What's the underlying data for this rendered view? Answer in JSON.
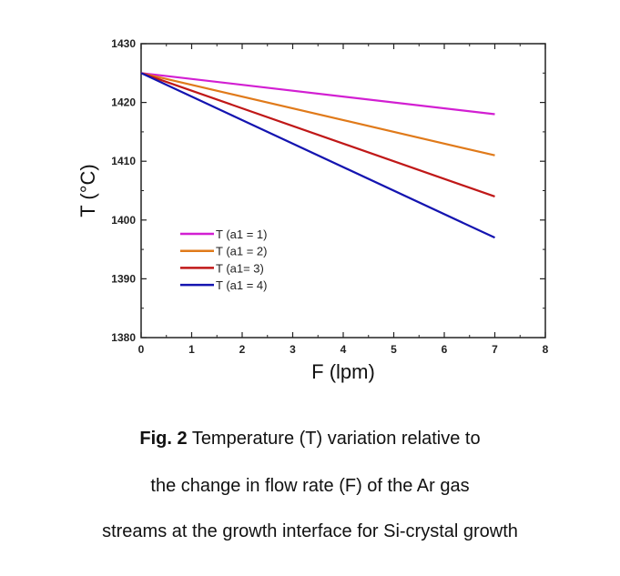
{
  "chart_data": {
    "type": "line",
    "xlabel": "F (lpm)",
    "ylabel": "T (°C)",
    "xlim": [
      0,
      8
    ],
    "ylim": [
      1380,
      1430
    ],
    "xticks": [
      0,
      1,
      2,
      3,
      4,
      5,
      6,
      7,
      8
    ],
    "yticks": [
      1380,
      1390,
      1400,
      1410,
      1420,
      1430
    ],
    "grid": false,
    "legend_position": "lower-left",
    "series": [
      {
        "name": "T (a1 = 1)",
        "color": "#d21fd2",
        "x": [
          0,
          7
        ],
        "y": [
          1425,
          1418
        ]
      },
      {
        "name": "T (a1 = 2)",
        "color": "#e07a1a",
        "x": [
          0,
          7
        ],
        "y": [
          1425,
          1411
        ]
      },
      {
        "name": "T (a1= 3)",
        "color": "#c01818",
        "x": [
          0,
          7
        ],
        "y": [
          1425,
          1404
        ]
      },
      {
        "name": "T (a1 = 4)",
        "color": "#1414b0",
        "x": [
          0,
          7
        ],
        "y": [
          1425,
          1397
        ]
      }
    ]
  },
  "caption": {
    "fig_label": "Fig. 2",
    "line1": "Temperature (T) variation relative to",
    "line2": "the change in flow rate (F) of the Ar gas",
    "line3": "streams at the growth interface for Si-crystal growth"
  }
}
